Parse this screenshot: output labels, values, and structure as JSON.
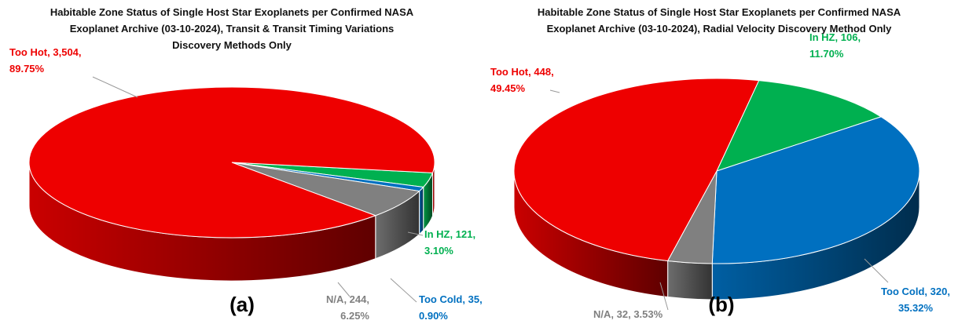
{
  "chart_data": [
    {
      "type": "pie3d",
      "title": [
        "Habitable Zone Status of Single Host Star Exoplanets per Confirmed NASA",
        "Exoplanet Archive (03-10-2024), Transit & Transit Timing Variations",
        "Discovery Methods Only"
      ],
      "panel": "(a)",
      "categories": [
        "In HZ",
        "Too Cold",
        "N/A",
        "Too Hot"
      ],
      "values": [
        121,
        35,
        244,
        3504
      ],
      "value_labels": [
        "121",
        "35",
        "244",
        "3,504"
      ],
      "percent_labels": [
        "3.10%",
        "0.90%",
        "6.25%",
        "89.75%"
      ],
      "colors": [
        "#00b050",
        "#0070c0",
        "#808080",
        "#ee0000"
      ]
    },
    {
      "type": "pie3d",
      "title": [
        "Habitable Zone Status of Single Host Star Exoplanets per Confirmed NASA",
        "Exoplanet Archive (03-10-2024), Radial Velocity Discovery Method Only"
      ],
      "panel": "(b)",
      "categories": [
        "In HZ",
        "Too Cold",
        "N/A",
        "Too Hot"
      ],
      "values": [
        106,
        320,
        32,
        448
      ],
      "value_labels": [
        "106",
        "320",
        "32",
        "448"
      ],
      "percent_labels": [
        "11.70%",
        "35.32%",
        "3.53%",
        "49.45%"
      ],
      "colors": [
        "#00b050",
        "#0070c0",
        "#808080",
        "#ee0000"
      ]
    }
  ]
}
